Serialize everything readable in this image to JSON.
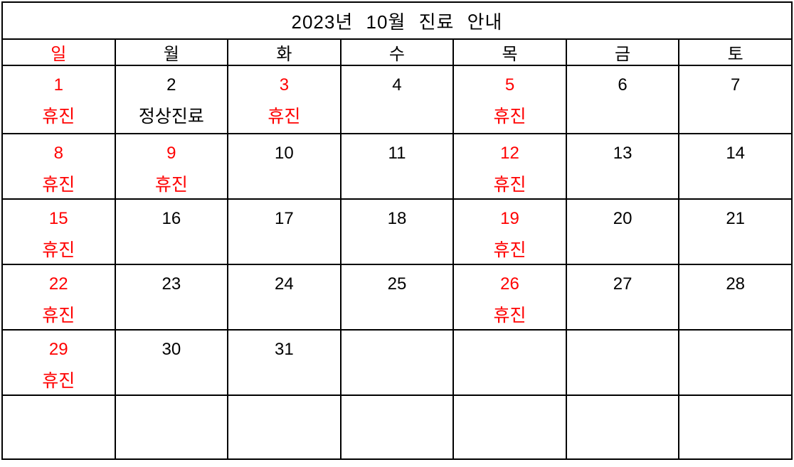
{
  "title": "2023년 10월 진료 안내",
  "colors": {
    "holiday": "#ff0000",
    "text": "#000000",
    "border": "#000000",
    "background": "#ffffff"
  },
  "weekdays": [
    {
      "key": "sun",
      "label": "일",
      "holiday": true
    },
    {
      "key": "mon",
      "label": "월",
      "holiday": false
    },
    {
      "key": "tue",
      "label": "화",
      "holiday": false
    },
    {
      "key": "wed",
      "label": "수",
      "holiday": false
    },
    {
      "key": "thu",
      "label": "목",
      "holiday": false
    },
    {
      "key": "fri",
      "label": "금",
      "holiday": false
    },
    {
      "key": "sat",
      "label": "토",
      "holiday": false
    }
  ],
  "weeks": [
    [
      {
        "date": "1",
        "note": "휴진",
        "holiday": true
      },
      {
        "date": "2",
        "note": "정상진료",
        "holiday": false
      },
      {
        "date": "3",
        "note": "휴진",
        "holiday": true
      },
      {
        "date": "4",
        "note": "",
        "holiday": false
      },
      {
        "date": "5",
        "note": "휴진",
        "holiday": true
      },
      {
        "date": "6",
        "note": "",
        "holiday": false
      },
      {
        "date": "7",
        "note": "",
        "holiday": false
      }
    ],
    [
      {
        "date": "8",
        "note": "휴진",
        "holiday": true
      },
      {
        "date": "9",
        "note": "휴진",
        "holiday": true
      },
      {
        "date": "10",
        "note": "",
        "holiday": false
      },
      {
        "date": "11",
        "note": "",
        "holiday": false
      },
      {
        "date": "12",
        "note": "휴진",
        "holiday": true
      },
      {
        "date": "13",
        "note": "",
        "holiday": false
      },
      {
        "date": "14",
        "note": "",
        "holiday": false
      }
    ],
    [
      {
        "date": "15",
        "note": "휴진",
        "holiday": true
      },
      {
        "date": "16",
        "note": "",
        "holiday": false
      },
      {
        "date": "17",
        "note": "",
        "holiday": false
      },
      {
        "date": "18",
        "note": "",
        "holiday": false
      },
      {
        "date": "19",
        "note": "휴진",
        "holiday": true
      },
      {
        "date": "20",
        "note": "",
        "holiday": false
      },
      {
        "date": "21",
        "note": "",
        "holiday": false
      }
    ],
    [
      {
        "date": "22",
        "note": "휴진",
        "holiday": true
      },
      {
        "date": "23",
        "note": "",
        "holiday": false
      },
      {
        "date": "24",
        "note": "",
        "holiday": false
      },
      {
        "date": "25",
        "note": "",
        "holiday": false
      },
      {
        "date": "26",
        "note": "휴진",
        "holiday": true
      },
      {
        "date": "27",
        "note": "",
        "holiday": false
      },
      {
        "date": "28",
        "note": "",
        "holiday": false
      }
    ],
    [
      {
        "date": "29",
        "note": "휴진",
        "holiday": true
      },
      {
        "date": "30",
        "note": "",
        "holiday": false
      },
      {
        "date": "31",
        "note": "",
        "holiday": false
      },
      {
        "date": "",
        "note": "",
        "holiday": false
      },
      {
        "date": "",
        "note": "",
        "holiday": false
      },
      {
        "date": "",
        "note": "",
        "holiday": false
      },
      {
        "date": "",
        "note": "",
        "holiday": false
      }
    ],
    [
      {
        "date": "",
        "note": "",
        "holiday": false
      },
      {
        "date": "",
        "note": "",
        "holiday": false
      },
      {
        "date": "",
        "note": "",
        "holiday": false
      },
      {
        "date": "",
        "note": "",
        "holiday": false
      },
      {
        "date": "",
        "note": "",
        "holiday": false
      },
      {
        "date": "",
        "note": "",
        "holiday": false
      },
      {
        "date": "",
        "note": "",
        "holiday": false
      }
    ]
  ]
}
